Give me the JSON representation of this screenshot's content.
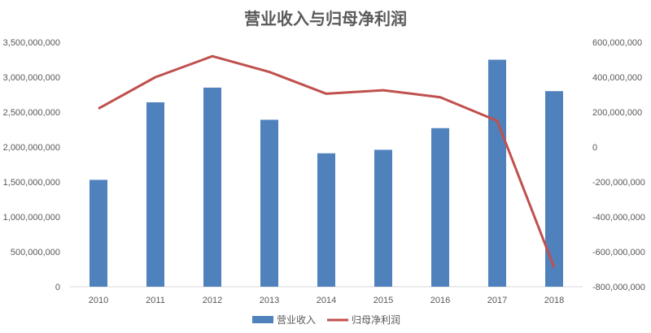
{
  "chart_data": {
    "type": "bar+line",
    "title": "营业收入与归母净利润",
    "categories": [
      "2010",
      "2011",
      "2012",
      "2013",
      "2014",
      "2015",
      "2016",
      "2017",
      "2018"
    ],
    "series": [
      {
        "name": "营业收入",
        "type": "bar",
        "axis": "left",
        "color": "#4F81BD",
        "values": [
          1530000000,
          2640000000,
          2850000000,
          2390000000,
          1910000000,
          1960000000,
          2270000000,
          3250000000,
          2800000000
        ]
      },
      {
        "name": "归母净利润",
        "type": "line",
        "axis": "right",
        "color": "#C0504D",
        "values": [
          220000000,
          400000000,
          520000000,
          430000000,
          305000000,
          325000000,
          285000000,
          150000000,
          -690000000
        ]
      }
    ],
    "y_left": {
      "ylim": [
        0,
        3500000000
      ],
      "ticks": [
        "0",
        "500,000,000",
        "1,000,000,000",
        "1,500,000,000",
        "2,000,000,000",
        "2,500,000,000",
        "3,000,000,000",
        "3,500,000,000"
      ]
    },
    "y_right": {
      "ylim": [
        -800000000,
        600000000
      ],
      "ticks": [
        "-800,000,000",
        "-600,000,000",
        "-400,000,000",
        "-200,000,000",
        "0",
        "200,000,000",
        "400,000,000",
        "600,000,000"
      ]
    },
    "grid": false,
    "legend": "bottom"
  }
}
